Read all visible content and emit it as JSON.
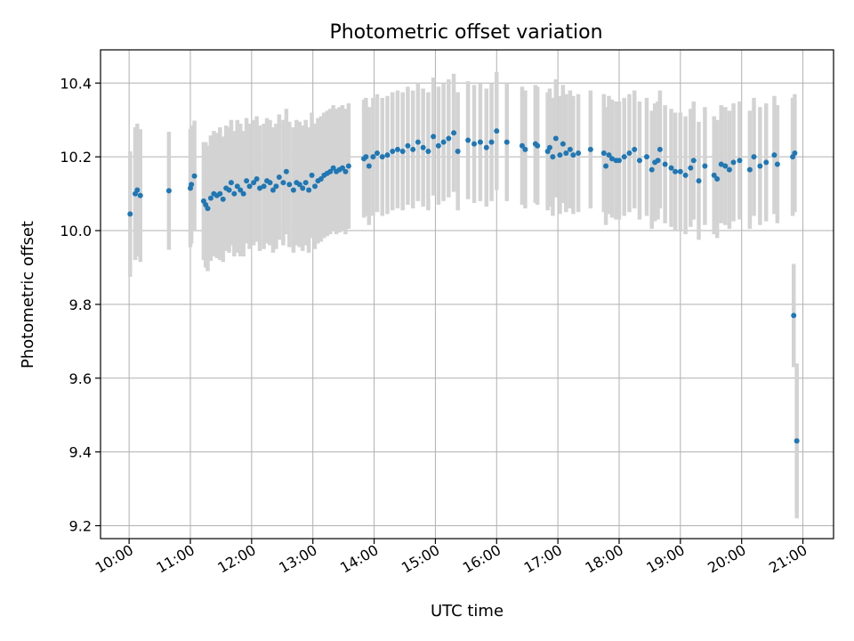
{
  "chart_data": {
    "type": "scatter",
    "title": "Photometric offset variation",
    "xlabel": "UTC time",
    "ylabel": "Photometric offset",
    "xlim": [
      "09:32",
      "21:30"
    ],
    "ylim": [
      9.165,
      10.49
    ],
    "grid": true,
    "x_ticks": [
      "10:00",
      "11:00",
      "12:00",
      "13:00",
      "14:00",
      "15:00",
      "16:00",
      "17:00",
      "18:00",
      "19:00",
      "20:00",
      "21:00"
    ],
    "y_ticks": [
      9.2,
      9.4,
      9.6,
      9.8,
      10.0,
      10.2,
      10.4
    ],
    "y_tick_labels": [
      "9.2",
      "9.4",
      "9.6",
      "9.8",
      "10.0",
      "10.2",
      "10.4"
    ],
    "colors": {
      "point": "#1f77b4",
      "errorbar": "#d3d3d3",
      "grid": "#b0b0b0"
    },
    "series": [
      {
        "x": [
          "10:01",
          "10:06",
          "10:08",
          "10:11",
          "10:39",
          "11:00",
          "11:01",
          "11:04",
          "11:13",
          "11:15",
          "11:17",
          "11:20",
          "11:23",
          "11:26",
          "11:29",
          "11:32",
          "11:35",
          "11:38",
          "11:40",
          "11:43",
          "11:46",
          "11:49",
          "11:52",
          "11:55",
          "11:58",
          "12:02",
          "12:05",
          "12:08",
          "12:12",
          "12:15",
          "12:18",
          "12:21",
          "12:24",
          "12:27",
          "12:31",
          "12:34",
          "12:37",
          "12:41",
          "12:44",
          "12:47",
          "12:50",
          "12:53",
          "12:56",
          "12:59",
          "13:02",
          "13:05",
          "13:08",
          "13:11",
          "13:14",
          "13:17",
          "13:20",
          "13:23",
          "13:26",
          "13:29",
          "13:32",
          "13:35",
          "13:50",
          "13:52",
          "13:55",
          "13:59",
          "14:03",
          "14:08",
          "14:13",
          "14:18",
          "14:23",
          "14:28",
          "14:33",
          "14:38",
          "14:43",
          "14:48",
          "14:53",
          "14:58",
          "15:03",
          "15:08",
          "15:13",
          "15:18",
          "15:22",
          "15:32",
          "15:38",
          "15:44",
          "15:50",
          "15:55",
          "16:00",
          "16:10",
          "16:25",
          "16:28",
          "16:38",
          "16:40",
          "16:50",
          "16:52",
          "16:55",
          "16:58",
          "17:02",
          "17:05",
          "17:08",
          "17:12",
          "17:15",
          "17:20",
          "17:32",
          "17:45",
          "17:47",
          "17:50",
          "17:53",
          "17:57",
          "18:00",
          "18:05",
          "18:10",
          "18:15",
          "18:20",
          "18:27",
          "18:32",
          "18:35",
          "18:38",
          "18:40",
          "18:45",
          "18:51",
          "18:55",
          "19:00",
          "19:05",
          "19:10",
          "19:13",
          "19:18",
          "19:24",
          "19:33",
          "19:36",
          "19:40",
          "19:44",
          "19:48",
          "19:52",
          "19:58",
          "20:08",
          "20:12",
          "20:18",
          "20:24",
          "20:32",
          "20:35",
          "20:50",
          "20:52"
        ],
        "y": [
          10.045,
          10.1,
          10.11,
          10.095,
          10.108,
          10.115,
          10.125,
          10.148,
          10.08,
          10.07,
          10.06,
          10.088,
          10.1,
          10.095,
          10.1,
          10.085,
          10.115,
          10.11,
          10.13,
          10.1,
          10.12,
          10.11,
          10.1,
          10.135,
          10.12,
          10.13,
          10.14,
          10.115,
          10.12,
          10.135,
          10.13,
          10.11,
          10.12,
          10.145,
          10.13,
          10.16,
          10.125,
          10.11,
          10.13,
          10.125,
          10.115,
          10.13,
          10.11,
          10.15,
          10.12,
          10.135,
          10.14,
          10.15,
          10.155,
          10.16,
          10.17,
          10.16,
          10.165,
          10.17,
          10.16,
          10.175,
          10.195,
          10.2,
          10.175,
          10.2,
          10.21,
          10.2,
          10.205,
          10.215,
          10.22,
          10.215,
          10.23,
          10.22,
          10.24,
          10.225,
          10.215,
          10.255,
          10.23,
          10.24,
          10.25,
          10.265,
          10.215,
          10.245,
          10.235,
          10.24,
          10.225,
          10.24,
          10.27,
          10.24,
          10.23,
          10.22,
          10.235,
          10.23,
          10.215,
          10.225,
          10.2,
          10.25,
          10.205,
          10.235,
          10.21,
          10.22,
          10.205,
          10.21,
          10.22,
          10.21,
          10.175,
          10.205,
          10.195,
          10.19,
          10.19,
          10.2,
          10.21,
          10.22,
          10.19,
          10.2,
          10.165,
          10.185,
          10.19,
          10.22,
          10.18,
          10.17,
          10.16,
          10.16,
          10.15,
          10.17,
          10.19,
          10.135,
          10.175,
          10.15,
          10.14,
          10.18,
          10.175,
          10.165,
          10.185,
          10.19,
          10.165,
          10.2,
          10.175,
          10.185,
          10.205,
          10.18,
          10.2,
          10.21
        ],
        "yerr": [
          0.17,
          0.18,
          0.18,
          0.18,
          0.16,
          0.16,
          0.16,
          0.15,
          0.16,
          0.17,
          0.17,
          0.17,
          0.17,
          0.17,
          0.18,
          0.17,
          0.17,
          0.17,
          0.17,
          0.17,
          0.18,
          0.18,
          0.17,
          0.17,
          0.17,
          0.17,
          0.17,
          0.17,
          0.17,
          0.17,
          0.17,
          0.17,
          0.17,
          0.17,
          0.17,
          0.17,
          0.17,
          0.17,
          0.17,
          0.17,
          0.17,
          0.17,
          0.17,
          0.17,
          0.17,
          0.17,
          0.17,
          0.17,
          0.17,
          0.17,
          0.17,
          0.17,
          0.17,
          0.17,
          0.17,
          0.17,
          0.16,
          0.16,
          0.16,
          0.16,
          0.16,
          0.16,
          0.16,
          0.16,
          0.16,
          0.16,
          0.16,
          0.16,
          0.16,
          0.16,
          0.16,
          0.16,
          0.16,
          0.16,
          0.16,
          0.16,
          0.16,
          0.16,
          0.16,
          0.16,
          0.16,
          0.16,
          0.16,
          0.16,
          0.16,
          0.16,
          0.16,
          0.16,
          0.16,
          0.16,
          0.16,
          0.16,
          0.16,
          0.16,
          0.16,
          0.16,
          0.16,
          0.16,
          0.16,
          0.16,
          0.16,
          0.16,
          0.16,
          0.16,
          0.16,
          0.16,
          0.16,
          0.16,
          0.16,
          0.16,
          0.16,
          0.16,
          0.16,
          0.16,
          0.16,
          0.16,
          0.16,
          0.16,
          0.16,
          0.16,
          0.16,
          0.16,
          0.16,
          0.16,
          0.16,
          0.16,
          0.16,
          0.16,
          0.16,
          0.16,
          0.16,
          0.16,
          0.16,
          0.16,
          0.16,
          0.16,
          0.16,
          0.16
        ]
      },
      {
        "x": [
          "20:51",
          "20:54"
        ],
        "y": [
          9.77,
          9.43
        ],
        "yerr": [
          0.14,
          0.21
        ]
      }
    ]
  }
}
